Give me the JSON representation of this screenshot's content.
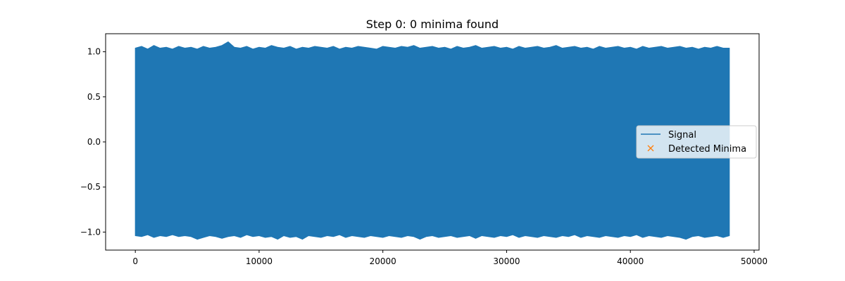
{
  "chart_data": {
    "type": "line",
    "title": "Step 0: 0 minima found",
    "xlabel": "",
    "ylabel": "",
    "xlim": [
      -2400,
      50400
    ],
    "ylim": [
      -1.2,
      1.2
    ],
    "xticks": [
      0,
      10000,
      20000,
      30000,
      40000,
      50000
    ],
    "xtick_labels": [
      "0",
      "10000",
      "20000",
      "30000",
      "40000",
      "50000"
    ],
    "yticks": [
      -1.0,
      -0.5,
      0.0,
      0.5,
      1.0
    ],
    "ytick_labels": [
      "−1.0",
      "−0.5",
      "0.0",
      "0.5",
      "1.0"
    ],
    "grid": false,
    "legend_position": "center-right",
    "series": [
      {
        "name": "Signal",
        "kind": "line",
        "color": "#1f77b4",
        "x_range": [
          0,
          48000
        ],
        "envelope_x": [
          0,
          500,
          1000,
          1500,
          2000,
          2500,
          3000,
          3500,
          4000,
          4500,
          5000,
          5500,
          6000,
          6500,
          7000,
          7500,
          8000,
          8500,
          9000,
          9500,
          10000,
          10500,
          11000,
          11500,
          12000,
          12500,
          13000,
          13500,
          14000,
          14500,
          15000,
          15500,
          16000,
          16500,
          17000,
          17500,
          18000,
          18500,
          19000,
          19500,
          20000,
          20500,
          21000,
          21500,
          22000,
          22500,
          23000,
          23500,
          24000,
          24500,
          25000,
          25500,
          26000,
          26500,
          27000,
          27500,
          28000,
          28500,
          29000,
          29500,
          30000,
          30500,
          31000,
          31500,
          32000,
          32500,
          33000,
          33500,
          34000,
          34500,
          35000,
          35500,
          36000,
          36500,
          37000,
          37500,
          38000,
          38500,
          39000,
          39500,
          40000,
          40500,
          41000,
          41500,
          42000,
          42500,
          43000,
          43500,
          44000,
          44500,
          45000,
          45500,
          46000,
          46500,
          47000,
          47500,
          48000
        ],
        "envelope_max": [
          1.04,
          1.06,
          1.03,
          1.07,
          1.04,
          1.05,
          1.03,
          1.06,
          1.04,
          1.05,
          1.03,
          1.06,
          1.04,
          1.05,
          1.07,
          1.11,
          1.05,
          1.04,
          1.06,
          1.03,
          1.05,
          1.04,
          1.07,
          1.05,
          1.04,
          1.06,
          1.03,
          1.05,
          1.04,
          1.06,
          1.05,
          1.04,
          1.06,
          1.03,
          1.05,
          1.04,
          1.06,
          1.05,
          1.04,
          1.03,
          1.06,
          1.05,
          1.04,
          1.06,
          1.05,
          1.07,
          1.04,
          1.05,
          1.06,
          1.04,
          1.05,
          1.03,
          1.06,
          1.04,
          1.05,
          1.07,
          1.04,
          1.05,
          1.06,
          1.04,
          1.05,
          1.03,
          1.06,
          1.04,
          1.05,
          1.06,
          1.04,
          1.05,
          1.07,
          1.04,
          1.05,
          1.06,
          1.04,
          1.05,
          1.03,
          1.06,
          1.04,
          1.05,
          1.06,
          1.04,
          1.05,
          1.03,
          1.06,
          1.04,
          1.05,
          1.06,
          1.04,
          1.05,
          1.06,
          1.04,
          1.05,
          1.03,
          1.05,
          1.04,
          1.06,
          1.04,
          1.04
        ],
        "envelope_min": [
          -1.04,
          -1.05,
          -1.03,
          -1.06,
          -1.04,
          -1.05,
          -1.03,
          -1.05,
          -1.04,
          -1.05,
          -1.08,
          -1.06,
          -1.04,
          -1.05,
          -1.07,
          -1.05,
          -1.04,
          -1.06,
          -1.03,
          -1.05,
          -1.04,
          -1.06,
          -1.05,
          -1.08,
          -1.04,
          -1.06,
          -1.05,
          -1.08,
          -1.04,
          -1.05,
          -1.06,
          -1.04,
          -1.05,
          -1.03,
          -1.06,
          -1.04,
          -1.05,
          -1.06,
          -1.04,
          -1.05,
          -1.06,
          -1.04,
          -1.05,
          -1.06,
          -1.04,
          -1.05,
          -1.08,
          -1.05,
          -1.04,
          -1.06,
          -1.05,
          -1.04,
          -1.06,
          -1.05,
          -1.04,
          -1.07,
          -1.04,
          -1.05,
          -1.06,
          -1.04,
          -1.05,
          -1.03,
          -1.06,
          -1.04,
          -1.05,
          -1.06,
          -1.04,
          -1.05,
          -1.06,
          -1.04,
          -1.05,
          -1.03,
          -1.06,
          -1.04,
          -1.05,
          -1.06,
          -1.04,
          -1.05,
          -1.06,
          -1.04,
          -1.05,
          -1.03,
          -1.06,
          -1.04,
          -1.05,
          -1.06,
          -1.04,
          -1.05,
          -1.06,
          -1.08,
          -1.05,
          -1.04,
          -1.06,
          -1.05,
          -1.04,
          -1.06,
          -1.04
        ]
      },
      {
        "name": "Detected Minima",
        "kind": "marker",
        "marker": "x",
        "color": "#ff7f0e",
        "points": []
      }
    ]
  }
}
